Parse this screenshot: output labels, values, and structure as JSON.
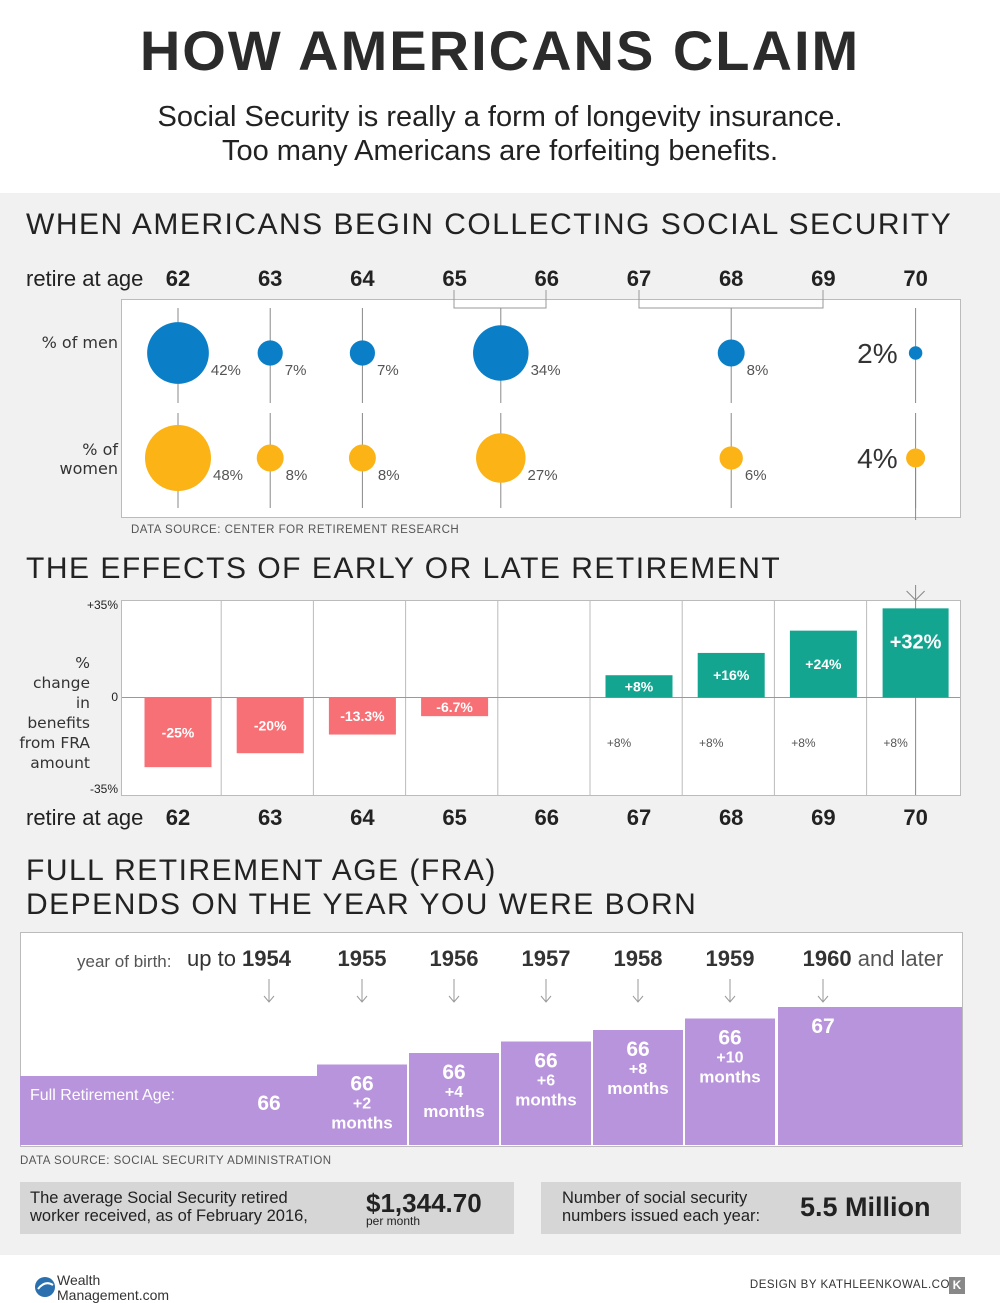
{
  "header": {
    "title": "HOW AMERICANS CLAIM",
    "subtitle_line1": "Social Security is really a form of longevity insurance.",
    "subtitle_line2": "Too many Americans are forfeiting benefits."
  },
  "colors": {
    "men": "#0a7fc7",
    "women": "#fbb315",
    "negative": "#f77075",
    "positive": "#13a58f",
    "fra_fill": "#b894dc",
    "background": "#f1f1f1"
  },
  "section1": {
    "title": "WHEN AMERICANS BEGIN COLLECTING SOCIAL SECURITY",
    "age_label_prefix": "retire at age",
    "men_label": "% of men",
    "women_label": "% of women",
    "source": "DATA SOURCE: CENTER FOR RETIREMENT RESEARCH"
  },
  "section2": {
    "title": "THE EFFECTS OF EARLY OR LATE RETIREMENT",
    "ylabel": "% change in benefits from FRA amount",
    "y_top": "+35%",
    "y_zero": "0",
    "y_bottom": "-35%",
    "age_label_prefix": "retire at age"
  },
  "section3": {
    "title_line1": "FULL RETIREMENT AGE (FRA)",
    "title_line2": "DEPENDS ON THE YEAR YOU WERE BORN",
    "year_label": "year of birth:",
    "fra_label": "Full Retirement Age:",
    "years": [
      {
        "prefix": "up to ",
        "year": "1954",
        "suffix": "",
        "fra_main": "66",
        "fra_sub": "",
        "fra_unit": "",
        "level": 0
      },
      {
        "prefix": "",
        "year": "1955",
        "suffix": "",
        "fra_main": "66",
        "fra_sub": "+2",
        "fra_unit": "months",
        "level": 1
      },
      {
        "prefix": "",
        "year": "1956",
        "suffix": "",
        "fra_main": "66",
        "fra_sub": "+4",
        "fra_unit": "months",
        "level": 2
      },
      {
        "prefix": "",
        "year": "1957",
        "suffix": "",
        "fra_main": "66",
        "fra_sub": "+6",
        "fra_unit": "months",
        "level": 3
      },
      {
        "prefix": "",
        "year": "1958",
        "suffix": "",
        "fra_main": "66",
        "fra_sub": "+8",
        "fra_unit": "months",
        "level": 4
      },
      {
        "prefix": "",
        "year": "1959",
        "suffix": "",
        "fra_main": "66",
        "fra_sub": "+10",
        "fra_unit": "months",
        "level": 5
      },
      {
        "prefix": "",
        "year": "1960",
        "suffix": " and later",
        "fra_main": "67",
        "fra_sub": "",
        "fra_unit": "",
        "level": 6
      }
    ],
    "source": "DATA SOURCE: SOCIAL SECURITY ADMINISTRATION"
  },
  "stats": {
    "benefit_text_line1": "The average Social Security retired",
    "benefit_text_line2": "worker received, as of February 2016,",
    "benefit_value": "$1,344.70",
    "benefit_unit": "per month",
    "ssn_text_line1": "Number of social security",
    "ssn_text_line2": "numbers issued each year:",
    "ssn_value": "5.5 Million"
  },
  "footer": {
    "logo_line1": "Wealth",
    "logo_line2": "Management.com",
    "design_credit": "DESIGN BY KATHLEENKOWAL.COM",
    "k_mark": "K"
  },
  "chart_data": [
    {
      "type": "scatter",
      "title": "WHEN AMERICANS BEGIN COLLECTING SOCIAL SECURITY",
      "xlabel": "retire at age",
      "categories": [
        "62",
        "63",
        "64",
        "65",
        "66",
        "67",
        "68",
        "69",
        "70"
      ],
      "series": [
        {
          "name": "% of men",
          "ages": [
            "62",
            "63",
            "64",
            "66",
            "68",
            "70"
          ],
          "values": [
            42,
            7,
            7,
            34,
            8,
            2
          ],
          "labels": [
            "42%",
            "7%",
            "7%",
            "34%",
            "8%",
            "2%"
          ]
        },
        {
          "name": "% of women",
          "ages": [
            "62",
            "63",
            "64",
            "66",
            "68",
            "70"
          ],
          "values": [
            48,
            8,
            8,
            27,
            6,
            4
          ],
          "labels": [
            "48%",
            "8%",
            "8%",
            "27%",
            "6%",
            "4%"
          ]
        }
      ]
    },
    {
      "type": "bar",
      "title": "THE EFFECTS OF EARLY OR LATE RETIREMENT",
      "xlabel": "retire at age",
      "ylabel": "% change in benefits from FRA amount",
      "ylim": [
        -35,
        35
      ],
      "categories": [
        "62",
        "63",
        "64",
        "65",
        "66",
        "67",
        "68",
        "69",
        "70"
      ],
      "values": [
        -25,
        -20,
        -13.3,
        -6.7,
        0,
        8,
        16,
        24,
        32
      ],
      "bar_labels": [
        "-25%",
        "-20%",
        "-13.3%",
        "-6.7%",
        "",
        "+8%",
        "+16%",
        "+24%",
        "+32%"
      ],
      "increment_labels": [
        "",
        "",
        "",
        "",
        "",
        "+8%",
        "+8%",
        "+8%",
        "+8%"
      ]
    }
  ]
}
